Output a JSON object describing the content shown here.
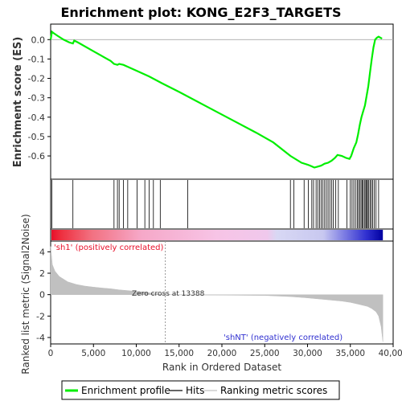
{
  "chart_data": {
    "type": "line",
    "title": "Enrichment plot: KONG_E2F3_TARGETS",
    "top_panel": {
      "ylabel": "Enrichment score (ES)",
      "ylim": [
        -0.72,
        0.08
      ],
      "yticks": [
        0.0,
        -0.1,
        -0.2,
        -0.3,
        -0.4,
        -0.5,
        -0.6
      ],
      "ytick_labels": [
        "0.0",
        "-0.1",
        "-0.2",
        "-0.3",
        "-0.4",
        "-0.5",
        "-0.6"
      ],
      "series": [
        {
          "name": "Enrichment profile",
          "color": "#00ee00",
          "x": [
            0,
            150,
            300,
            800,
            1500,
            2200,
            2600,
            2750,
            3200,
            5000,
            7000,
            7400,
            7800,
            8000,
            8500,
            9000,
            10000,
            11500,
            13000,
            15000,
            18000,
            21000,
            24000,
            26000,
            28000,
            29300,
            30000,
            30300,
            30800,
            31200,
            31600,
            32000,
            32400,
            32800,
            33200,
            33500,
            34000,
            34500,
            34900,
            35100,
            35400,
            35700,
            35900,
            36100,
            36300,
            36500,
            36700,
            36900,
            37100,
            37300,
            37500,
            37700,
            37900,
            38100,
            38300,
            38700
          ],
          "y": [
            0.0,
            0.04,
            0.035,
            0.02,
            0.0,
            -0.015,
            -0.02,
            -0.005,
            -0.015,
            -0.06,
            -0.11,
            -0.125,
            -0.13,
            -0.125,
            -0.13,
            -0.14,
            -0.16,
            -0.19,
            -0.225,
            -0.27,
            -0.34,
            -0.41,
            -0.48,
            -0.53,
            -0.6,
            -0.635,
            -0.645,
            -0.65,
            -0.66,
            -0.655,
            -0.65,
            -0.64,
            -0.635,
            -0.625,
            -0.61,
            -0.595,
            -0.6,
            -0.61,
            -0.615,
            -0.6,
            -0.56,
            -0.53,
            -0.49,
            -0.44,
            -0.4,
            -0.37,
            -0.34,
            -0.29,
            -0.24,
            -0.17,
            -0.1,
            -0.04,
            0.0,
            0.01,
            0.015,
            0.005
          ]
        }
      ]
    },
    "hits_panel": {
      "legend_name": "Hits",
      "hit_positions": [
        150,
        2600,
        7400,
        7800,
        8000,
        8500,
        9000,
        10100,
        11000,
        11500,
        12000,
        12800,
        16000,
        28000,
        28400,
        29600,
        30100,
        30500,
        30700,
        31000,
        31200,
        31400,
        31600,
        31800,
        32000,
        32200,
        32400,
        32600,
        32800,
        33000,
        33300,
        33600,
        34600,
        35000,
        35200,
        35400,
        35600,
        35800,
        35950,
        36100,
        36250,
        36400,
        36500,
        36650,
        36800,
        36900,
        37000,
        37150,
        37300,
        37450,
        37600,
        37800,
        38000,
        38300
      ]
    },
    "bottom_panel": {
      "ylabel": "Ranked list metric (Signal2Noise)",
      "xlabel": "Rank in Ordered Dataset",
      "ylim": [
        -4.6,
        5.0
      ],
      "yticks": [
        4,
        2,
        0,
        -2,
        -4
      ],
      "ytick_labels": [
        "4",
        "2",
        "0",
        "-2",
        "-4"
      ],
      "xlim": [
        0,
        40000
      ],
      "xticks": [
        0,
        5000,
        10000,
        15000,
        20000,
        25000,
        30000,
        35000,
        40000
      ],
      "xtick_labels": [
        "0",
        "5,000",
        "10,000",
        "15,000",
        "20,000",
        "25,000",
        "30,000",
        "35,000",
        "40,000"
      ],
      "zero_cross": 13388,
      "zero_cross_label": "Zero cross at 13388",
      "pos_label": "'sh1' (positively correlated)",
      "neg_label": "'shNT' (negatively correlated)",
      "metric_x": [
        0,
        200,
        500,
        1000,
        2000,
        3000,
        4000,
        5000,
        6000,
        7000,
        8000,
        9000,
        10000,
        11000,
        12000,
        13388,
        16000,
        20000,
        25000,
        28000,
        30000,
        32000,
        34000,
        35000,
        36000,
        36500,
        37000,
        37500,
        38000,
        38300,
        38600,
        38800
      ],
      "metric_y": [
        4.5,
        2.8,
        2.2,
        1.7,
        1.2,
        0.95,
        0.8,
        0.7,
        0.62,
        0.55,
        0.45,
        0.38,
        0.3,
        0.22,
        0.12,
        0.0,
        -0.03,
        -0.05,
        -0.08,
        -0.18,
        -0.3,
        -0.45,
        -0.6,
        -0.72,
        -0.9,
        -1.0,
        -1.1,
        -1.3,
        -1.6,
        -2.0,
        -3.0,
        -4.4
      ]
    },
    "legend": {
      "entries": [
        "Enrichment profile",
        "Hits",
        "Ranking metric scores"
      ],
      "colors": [
        "#00ee00",
        "#000000",
        "#c0c0c0"
      ],
      "placement": "bottom"
    },
    "x_max": 38800
  }
}
